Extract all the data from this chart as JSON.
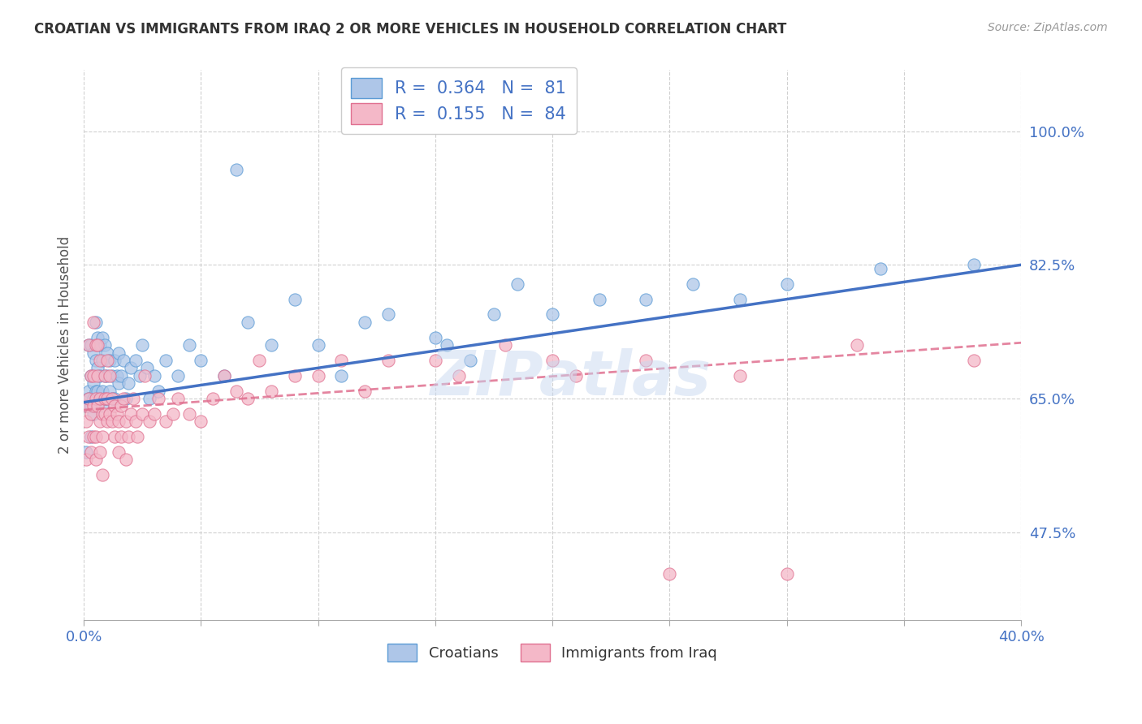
{
  "title": "CROATIAN VS IMMIGRANTS FROM IRAQ 2 OR MORE VEHICLES IN HOUSEHOLD CORRELATION CHART",
  "source": "Source: ZipAtlas.com",
  "ylabel": "2 or more Vehicles in Household",
  "croatian_R": 0.364,
  "croatian_N": 81,
  "iraq_R": 0.155,
  "iraq_N": 84,
  "croatian_color": "#aec6e8",
  "croatian_edge_color": "#5b9bd5",
  "croatian_line_color": "#4472c4",
  "iraq_color": "#f4b8c8",
  "iraq_edge_color": "#e07090",
  "iraq_line_color": "#e07090",
  "watermark": "ZIPatlas",
  "background_color": "#ffffff",
  "xlim_min": 0.0,
  "xlim_max": 0.4,
  "ylim_min": 0.36,
  "ylim_max": 1.08,
  "y_ticks": [
    0.475,
    0.65,
    0.825,
    1.0
  ],
  "y_tick_labels": [
    "47.5%",
    "65.0%",
    "82.5%",
    "100.0%"
  ],
  "croatian_x": [
    0.001,
    0.001,
    0.002,
    0.002,
    0.002,
    0.003,
    0.003,
    0.003,
    0.003,
    0.004,
    0.004,
    0.004,
    0.004,
    0.005,
    0.005,
    0.005,
    0.005,
    0.006,
    0.006,
    0.006,
    0.006,
    0.007,
    0.007,
    0.007,
    0.008,
    0.008,
    0.008,
    0.008,
    0.009,
    0.009,
    0.009,
    0.01,
    0.01,
    0.01,
    0.011,
    0.011,
    0.012,
    0.012,
    0.013,
    0.013,
    0.014,
    0.015,
    0.015,
    0.016,
    0.017,
    0.018,
    0.019,
    0.02,
    0.022,
    0.024,
    0.025,
    0.027,
    0.028,
    0.03,
    0.032,
    0.035,
    0.04,
    0.045,
    0.05,
    0.06,
    0.065,
    0.07,
    0.08,
    0.09,
    0.1,
    0.11,
    0.12,
    0.13,
    0.15,
    0.155,
    0.165,
    0.175,
    0.185,
    0.2,
    0.22,
    0.24,
    0.26,
    0.28,
    0.3,
    0.34,
    0.38
  ],
  "croatian_y": [
    0.64,
    0.58,
    0.66,
    0.72,
    0.65,
    0.64,
    0.6,
    0.68,
    0.72,
    0.63,
    0.67,
    0.71,
    0.65,
    0.66,
    0.7,
    0.64,
    0.75,
    0.65,
    0.69,
    0.73,
    0.66,
    0.65,
    0.68,
    0.72,
    0.66,
    0.7,
    0.64,
    0.73,
    0.65,
    0.68,
    0.72,
    0.65,
    0.68,
    0.71,
    0.66,
    0.7,
    0.65,
    0.68,
    0.65,
    0.7,
    0.68,
    0.67,
    0.71,
    0.68,
    0.7,
    0.65,
    0.67,
    0.69,
    0.7,
    0.68,
    0.72,
    0.69,
    0.65,
    0.68,
    0.66,
    0.7,
    0.68,
    0.72,
    0.7,
    0.68,
    0.95,
    0.75,
    0.72,
    0.78,
    0.72,
    0.68,
    0.75,
    0.76,
    0.73,
    0.72,
    0.7,
    0.76,
    0.8,
    0.76,
    0.78,
    0.78,
    0.8,
    0.78,
    0.8,
    0.82,
    0.825
  ],
  "iraq_x": [
    0.001,
    0.001,
    0.001,
    0.002,
    0.002,
    0.002,
    0.003,
    0.003,
    0.003,
    0.004,
    0.004,
    0.004,
    0.004,
    0.005,
    0.005,
    0.005,
    0.005,
    0.006,
    0.006,
    0.006,
    0.007,
    0.007,
    0.007,
    0.007,
    0.008,
    0.008,
    0.008,
    0.009,
    0.009,
    0.009,
    0.01,
    0.01,
    0.01,
    0.011,
    0.011,
    0.012,
    0.012,
    0.013,
    0.013,
    0.014,
    0.015,
    0.015,
    0.016,
    0.016,
    0.017,
    0.018,
    0.018,
    0.019,
    0.02,
    0.021,
    0.022,
    0.023,
    0.025,
    0.026,
    0.028,
    0.03,
    0.032,
    0.035,
    0.038,
    0.04,
    0.045,
    0.05,
    0.055,
    0.06,
    0.065,
    0.07,
    0.075,
    0.08,
    0.09,
    0.1,
    0.11,
    0.12,
    0.13,
    0.15,
    0.16,
    0.18,
    0.2,
    0.21,
    0.24,
    0.25,
    0.28,
    0.3,
    0.33,
    0.38
  ],
  "iraq_y": [
    0.62,
    0.57,
    0.64,
    0.65,
    0.6,
    0.72,
    0.63,
    0.58,
    0.68,
    0.64,
    0.6,
    0.68,
    0.75,
    0.65,
    0.6,
    0.72,
    0.57,
    0.64,
    0.68,
    0.72,
    0.62,
    0.58,
    0.65,
    0.7,
    0.63,
    0.6,
    0.55,
    0.65,
    0.68,
    0.63,
    0.62,
    0.65,
    0.7,
    0.63,
    0.68,
    0.62,
    0.65,
    0.64,
    0.6,
    0.63,
    0.62,
    0.58,
    0.64,
    0.6,
    0.65,
    0.62,
    0.57,
    0.6,
    0.63,
    0.65,
    0.62,
    0.6,
    0.63,
    0.68,
    0.62,
    0.63,
    0.65,
    0.62,
    0.63,
    0.65,
    0.63,
    0.62,
    0.65,
    0.68,
    0.66,
    0.65,
    0.7,
    0.66,
    0.68,
    0.68,
    0.7,
    0.66,
    0.7,
    0.7,
    0.68,
    0.72,
    0.7,
    0.68,
    0.7,
    0.42,
    0.68,
    0.42,
    0.72,
    0.7
  ]
}
